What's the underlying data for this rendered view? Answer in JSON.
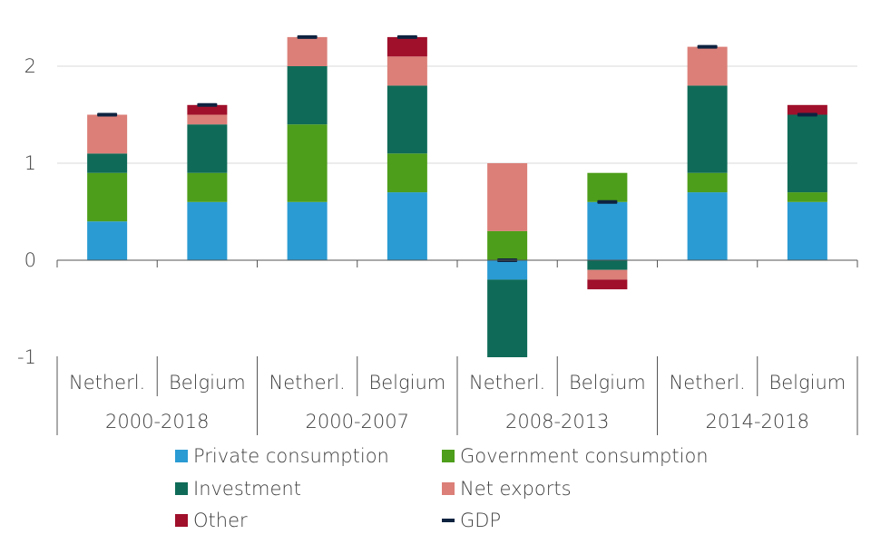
{
  "chart_data": {
    "type": "bar",
    "stacked": true,
    "ylim": [
      -1,
      2.4
    ],
    "yticks": [
      -1,
      0,
      1,
      2
    ],
    "grid": true,
    "legend_position": "bottom",
    "groups": [
      {
        "label": "2000-2018",
        "categories": [
          "Netherl.",
          "Belgium"
        ]
      },
      {
        "label": "2000-2007",
        "categories": [
          "Netherl.",
          "Belgium"
        ]
      },
      {
        "label": "2008-2013",
        "categories": [
          "Netherl.",
          "Belgium"
        ]
      },
      {
        "label": "2014-2018",
        "categories": [
          "Netherl.",
          "Belgium"
        ]
      }
    ],
    "series": [
      {
        "name": "Private consumption",
        "color": "#2a9bd3",
        "values": [
          0.4,
          0.6,
          0.6,
          0.7,
          -0.2,
          0.6,
          0.7,
          0.6
        ]
      },
      {
        "name": "Government consumption",
        "color": "#4d9e1a",
        "values": [
          0.5,
          0.3,
          0.8,
          0.4,
          0.3,
          0.3,
          0.2,
          0.1
        ]
      },
      {
        "name": "Investment",
        "color": "#0f6b57",
        "values": [
          0.2,
          0.5,
          0.6,
          0.7,
          -0.8,
          -0.1,
          0.9,
          0.8
        ]
      },
      {
        "name": "Net exports",
        "color": "#db7f78",
        "values": [
          0.4,
          0.1,
          0.3,
          0.3,
          0.7,
          -0.1,
          0.4,
          0.0
        ]
      },
      {
        "name": "Other",
        "color": "#a0102b",
        "values": [
          0.0,
          0.1,
          0.0,
          0.2,
          0.0,
          -0.1,
          0.0,
          0.1
        ]
      }
    ],
    "gdp": {
      "name": "GDP",
      "color": "#0e2340",
      "values": [
        1.5,
        1.6,
        2.3,
        2.3,
        0.0,
        0.6,
        2.2,
        1.5
      ]
    }
  }
}
